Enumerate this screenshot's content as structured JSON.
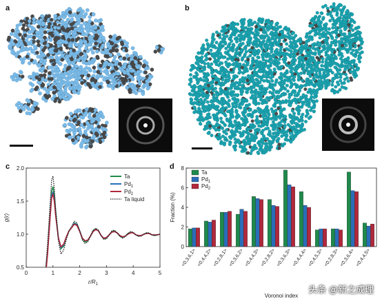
{
  "panels": {
    "a": {
      "letter": "a",
      "description_icon": "atom-cluster-image"
    },
    "b": {
      "letter": "b",
      "description_icon": "atom-sphere-image"
    },
    "c": {
      "letter": "c"
    },
    "d": {
      "letter": "d"
    }
  },
  "colors": {
    "atom_light_blue": "#7cbbe8",
    "atom_dark_gray": "#4a4a4a",
    "atom_teal": "#1aa3b0",
    "ta": "#1f8a4c",
    "pd1": "#2a6db8",
    "pd2": "#b0283c",
    "ta_liquid": "#111111"
  },
  "chart_data": [
    {
      "type": "line",
      "panel": "c",
      "xlabel": "r/R",
      "xlabel_sub": "1",
      "ylabel": "g(r)",
      "xlim": [
        0,
        5
      ],
      "ylim": [
        0.5,
        2.0
      ],
      "xticks": [
        "0",
        "1",
        "2",
        "3",
        "4",
        "5"
      ],
      "yticks": [
        "0.5",
        "1.0",
        "1.5",
        "2.0"
      ],
      "legend_placement": "top-right",
      "series": [
        {
          "name": "Ta",
          "name_sub": "",
          "style": "solid",
          "color": "#1f8a4c",
          "x": [
            0.0,
            0.7,
            0.8,
            0.9,
            0.95,
            1.0,
            1.05,
            1.1,
            1.2,
            1.3,
            1.4,
            1.5,
            1.6,
            1.7,
            1.8,
            1.9,
            2.0,
            2.1,
            2.2,
            2.3,
            2.4,
            2.5,
            2.6,
            2.7,
            2.8,
            2.9,
            3.0,
            3.1,
            3.2,
            3.3,
            3.4,
            3.5,
            3.6,
            3.7,
            3.8,
            3.9,
            4.0,
            4.1,
            4.2,
            4.3,
            4.4,
            4.5,
            4.6,
            4.7,
            4.8,
            4.9,
            5.0
          ],
          "y": [
            0.0,
            0.3,
            0.75,
            1.35,
            1.65,
            1.72,
            1.6,
            1.35,
            0.95,
            0.78,
            0.82,
            0.95,
            1.05,
            1.1,
            1.17,
            1.15,
            1.05,
            0.93,
            0.88,
            0.9,
            0.97,
            1.05,
            1.08,
            1.05,
            0.98,
            0.93,
            0.94,
            0.99,
            1.04,
            1.05,
            1.02,
            0.97,
            0.95,
            0.97,
            1.01,
            1.03,
            1.02,
            0.99,
            0.97,
            0.98,
            1.0,
            1.02,
            1.01,
            0.99,
            0.98,
            0.99,
            1.0
          ]
        },
        {
          "name": "Pd",
          "name_sub": "1",
          "style": "solid",
          "color": "#2a6db8",
          "x": [
            0.0,
            0.7,
            0.8,
            0.9,
            0.95,
            1.0,
            1.05,
            1.1,
            1.2,
            1.3,
            1.4,
            1.5,
            1.6,
            1.7,
            1.8,
            1.9,
            2.0,
            2.1,
            2.2,
            2.3,
            2.4,
            2.5,
            2.6,
            2.7,
            2.8,
            2.9,
            3.0,
            3.1,
            3.2,
            3.3,
            3.4,
            3.5,
            3.6,
            3.7,
            3.8,
            3.9,
            4.0,
            4.1,
            4.2,
            4.3,
            4.4,
            4.5,
            4.6,
            4.7,
            4.8,
            4.9,
            5.0
          ],
          "y": [
            0.0,
            0.28,
            0.72,
            1.3,
            1.58,
            1.63,
            1.52,
            1.3,
            0.95,
            0.8,
            0.84,
            0.96,
            1.05,
            1.1,
            1.16,
            1.14,
            1.05,
            0.94,
            0.9,
            0.91,
            0.97,
            1.04,
            1.07,
            1.05,
            0.98,
            0.94,
            0.95,
            0.99,
            1.03,
            1.04,
            1.02,
            0.98,
            0.96,
            0.97,
            1.0,
            1.02,
            1.02,
            0.99,
            0.98,
            0.98,
            1.0,
            1.01,
            1.01,
            0.99,
            0.99,
            0.99,
            1.0
          ]
        },
        {
          "name": "Pd",
          "name_sub": "2",
          "style": "solid",
          "color": "#b0283c",
          "x": [
            0.0,
            0.7,
            0.8,
            0.9,
            0.95,
            1.0,
            1.05,
            1.1,
            1.2,
            1.3,
            1.4,
            1.5,
            1.6,
            1.7,
            1.8,
            1.9,
            2.0,
            2.1,
            2.2,
            2.3,
            2.4,
            2.5,
            2.6,
            2.7,
            2.8,
            2.9,
            3.0,
            3.1,
            3.2,
            3.3,
            3.4,
            3.5,
            3.6,
            3.7,
            3.8,
            3.9,
            4.0,
            4.1,
            4.2,
            4.3,
            4.4,
            4.5,
            4.6,
            4.7,
            4.8,
            4.9,
            5.0
          ],
          "y": [
            0.0,
            0.27,
            0.7,
            1.28,
            1.55,
            1.6,
            1.5,
            1.28,
            0.95,
            0.81,
            0.85,
            0.96,
            1.05,
            1.1,
            1.15,
            1.13,
            1.04,
            0.94,
            0.9,
            0.91,
            0.97,
            1.04,
            1.07,
            1.05,
            0.98,
            0.94,
            0.95,
            0.99,
            1.03,
            1.04,
            1.02,
            0.98,
            0.96,
            0.97,
            1.0,
            1.02,
            1.02,
            0.99,
            0.98,
            0.98,
            1.0,
            1.01,
            1.01,
            0.99,
            0.99,
            0.99,
            1.0
          ]
        },
        {
          "name": "Ta liquid",
          "name_sub": "",
          "style": "dotted",
          "color": "#111111",
          "x": [
            0.0,
            0.7,
            0.8,
            0.9,
            0.95,
            1.0,
            1.05,
            1.1,
            1.2,
            1.3,
            1.4,
            1.5,
            1.6,
            1.7,
            1.8,
            1.9,
            2.0,
            2.1,
            2.2,
            2.3,
            2.4,
            2.5,
            2.6,
            2.7,
            2.8,
            2.9,
            3.0,
            3.1,
            3.2,
            3.3,
            3.4,
            3.5,
            3.6,
            3.7,
            3.8,
            3.9,
            4.0,
            4.1,
            4.2,
            4.3,
            4.4,
            4.5,
            4.6,
            4.7,
            4.8,
            4.9,
            5.0
          ],
          "y": [
            0.0,
            0.35,
            0.85,
            1.5,
            1.82,
            1.88,
            1.7,
            1.38,
            0.9,
            0.7,
            0.76,
            0.92,
            1.05,
            1.12,
            1.2,
            1.17,
            1.05,
            0.91,
            0.86,
            0.88,
            0.97,
            1.06,
            1.09,
            1.06,
            0.98,
            0.92,
            0.93,
            0.99,
            1.05,
            1.06,
            1.02,
            0.97,
            0.94,
            0.96,
            1.01,
            1.04,
            1.03,
            0.99,
            0.97,
            0.97,
            1.0,
            1.02,
            1.02,
            0.99,
            0.98,
            0.99,
            1.0
          ]
        }
      ]
    },
    {
      "type": "bar",
      "panel": "d",
      "xlabel": "Voronoi index",
      "ylabel": "Fraction (%)",
      "ylim": [
        0,
        8
      ],
      "yticks": [
        "0",
        "2",
        "4",
        "6",
        "8"
      ],
      "legend_placement": "top-left",
      "categories": [
        "<0,3,6,1>",
        "<0,4,4,2>",
        "<0,2,8,1>",
        "<0,3,6,2>",
        "<0,4,4,3>",
        "<0,2,8,2>",
        "<0,3,6,3>",
        "<0,4,4,4>",
        "<0,4,5,3>",
        "<0,2,8,3>",
        "<0,3,6,4>",
        "<0,4,4,5>"
      ],
      "series": [
        {
          "name": "Ta",
          "name_sub": "",
          "color": "#1f8a4c",
          "values": [
            1.8,
            2.6,
            3.5,
            3.3,
            5.1,
            4.8,
            7.8,
            5.6,
            1.7,
            1.8,
            7.6,
            2.4
          ]
        },
        {
          "name": "Pd",
          "name_sub": "1",
          "color": "#2a6db8",
          "values": [
            1.9,
            2.5,
            3.5,
            3.8,
            4.9,
            4.2,
            6.3,
            4.2,
            1.8,
            1.8,
            5.7,
            2.1
          ]
        },
        {
          "name": "Pd",
          "name_sub": "2",
          "color": "#b0283c",
          "values": [
            1.9,
            2.7,
            3.6,
            3.6,
            4.8,
            4.1,
            6.1,
            4.0,
            1.8,
            1.7,
            5.6,
            2.3
          ]
        }
      ]
    }
  ],
  "watermark": "头条 @新之成理"
}
